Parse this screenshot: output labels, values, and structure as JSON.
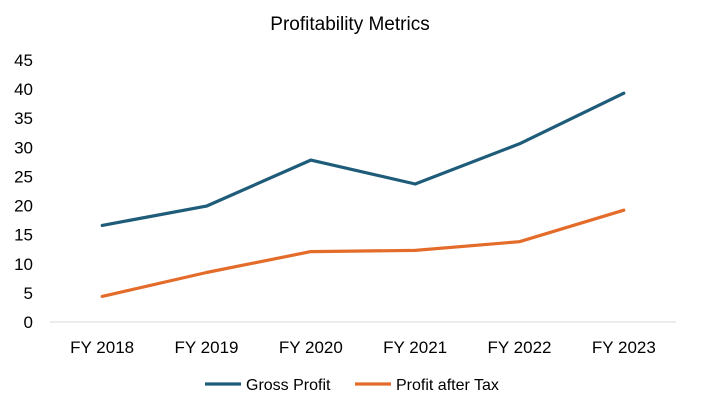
{
  "chart_data": {
    "type": "line",
    "title": "Profitability Metrics",
    "xlabel": "",
    "ylabel": "",
    "categories": [
      "FY 2018",
      "FY 2019",
      "FY 2020",
      "FY 2021",
      "FY 2022",
      "FY 2023"
    ],
    "ylim": [
      0,
      45
    ],
    "yticks": [
      0,
      5,
      10,
      15,
      20,
      25,
      30,
      35,
      40,
      45
    ],
    "grid": false,
    "legend_position": "bottom",
    "series": [
      {
        "name": "Gross Profit",
        "color": "#1f5c7a",
        "values": [
          16.6,
          19.9,
          27.8,
          23.7,
          30.6,
          39.3
        ]
      },
      {
        "name": "Profit after Tax",
        "color": "#e46c2a",
        "values": [
          4.4,
          8.5,
          12.1,
          12.3,
          13.8,
          19.2
        ]
      }
    ]
  }
}
